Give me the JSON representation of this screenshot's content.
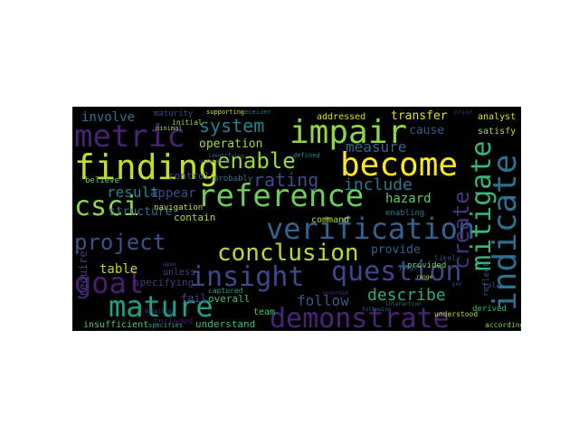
{
  "words": [
    {
      "text": "finding",
      "color": "#c2df23"
    },
    {
      "text": "become",
      "color": "#fde725"
    },
    {
      "text": "impair",
      "color": "#8ed645"
    },
    {
      "text": "metric",
      "color": "#482374"
    },
    {
      "text": "reference",
      "color": "#6ccd5a"
    },
    {
      "text": "verification",
      "color": "#33638d"
    },
    {
      "text": "insight",
      "color": "#3f4889"
    },
    {
      "text": "goal",
      "color": "#481f70"
    },
    {
      "text": "mature",
      "color": "#1fa187"
    },
    {
      "text": "question",
      "color": "#414487"
    },
    {
      "text": "demonstrate",
      "color": "#482576"
    },
    {
      "text": "indicate",
      "color": "#2d708e"
    },
    {
      "text": "mitigate",
      "color": "#35b779"
    },
    {
      "text": "csci",
      "color": "#8bd646"
    },
    {
      "text": "conclusion",
      "color": "#b5de2b"
    },
    {
      "text": "project",
      "color": "#3b528b"
    },
    {
      "text": "enable",
      "color": "#9bd93c"
    },
    {
      "text": "create",
      "color": "#46327e"
    },
    {
      "text": "system",
      "color": "#26828e"
    },
    {
      "text": "rating",
      "color": "#3e4c8a"
    },
    {
      "text": "describe",
      "color": "#26ad81"
    },
    {
      "text": "measure",
      "color": "#31688e"
    },
    {
      "text": "include",
      "color": "#2a788e"
    },
    {
      "text": "result",
      "color": "#25848e"
    },
    {
      "text": "follow",
      "color": "#38588c"
    },
    {
      "text": "involve",
      "color": "#2c728e"
    },
    {
      "text": "operation",
      "color": "#a5db36"
    },
    {
      "text": "structure",
      "color": "#2e6f8e"
    },
    {
      "text": "appear",
      "color": "#3e4a89"
    },
    {
      "text": "hazard",
      "color": "#5ec962"
    },
    {
      "text": "transfer",
      "color": "#dde318"
    },
    {
      "text": "table",
      "color": "#b8de29"
    },
    {
      "text": "provide",
      "color": "#355f8d"
    },
    {
      "text": "contain",
      "color": "#aadc32"
    },
    {
      "text": "require",
      "color": "#424086"
    },
    {
      "text": "cause",
      "color": "#3a548c"
    },
    {
      "text": "command",
      "color": "#b0dd2f"
    },
    {
      "text": "fail",
      "color": "#3f4788"
    },
    {
      "text": "overall",
      "color": "#4ac16d"
    },
    {
      "text": "understand",
      "color": "#3dbc74"
    },
    {
      "text": "captured",
      "color": "#22a884"
    },
    {
      "text": "addressed",
      "color": "#d2e21b"
    },
    {
      "text": "analyst",
      "color": "#d8e219"
    },
    {
      "text": "satisfy",
      "color": "#addc30"
    },
    {
      "text": "insufficient",
      "color": "#5ac864"
    },
    {
      "text": "team",
      "color": "#52c569"
    },
    {
      "text": "control",
      "color": "#3b518b"
    },
    {
      "text": "navigation",
      "color": "#c5e021"
    },
    {
      "text": "specifying",
      "color": "#443983"
    },
    {
      "text": "unless",
      "color": "#404588"
    },
    {
      "text": "maturity",
      "color": "#3e4a89"
    },
    {
      "text": "believe",
      "color": "#6ece58"
    },
    {
      "text": "enabling",
      "color": "#2a788e"
    },
    {
      "text": "provided",
      "color": "#7ad151"
    },
    {
      "text": "reflect",
      "color": "#3c4f8a"
    },
    {
      "text": "likely",
      "color": "#404688"
    },
    {
      "text": "derived",
      "color": "#35b779"
    },
    {
      "text": "according",
      "color": "#84d44b"
    },
    {
      "text": "probably",
      "color": "#2c738e"
    },
    {
      "text": "included",
      "color": "#481668"
    },
    {
      "text": "initial",
      "color": "#a2da37"
    },
    {
      "text": "minimal",
      "color": "#93d741"
    },
    {
      "text": "supporting",
      "color": "#cae11f"
    },
    {
      "text": "understood",
      "color": "#b2dd2d"
    },
    {
      "text": "judge",
      "color": "#2e6e8e"
    },
    {
      "text": "defined",
      "color": "#23898e"
    },
    {
      "text": "specifies",
      "color": "#29af7f"
    },
    {
      "text": "role",
      "color": "#3d4e8a"
    },
    {
      "text": "prior",
      "color": "#482878"
    },
    {
      "text": "receiver",
      "color": "#2a768e"
    },
    {
      "text": "identifying",
      "color": "#34618d"
    },
    {
      "text": "recorded",
      "color": "#472d7b"
    },
    {
      "text": "following",
      "color": "#31678e"
    },
    {
      "text": "detailing",
      "color": "#3f4788"
    },
    {
      "text": "interaction",
      "color": "#2b758e"
    },
    {
      "text": "existence",
      "color": "#3d4d8a"
    },
    {
      "text": "pdr",
      "color": "#3e4989"
    },
    {
      "text": "range",
      "color": "#b5de2b"
    },
    {
      "text": "upon",
      "color": "#3b528b"
    }
  ]
}
